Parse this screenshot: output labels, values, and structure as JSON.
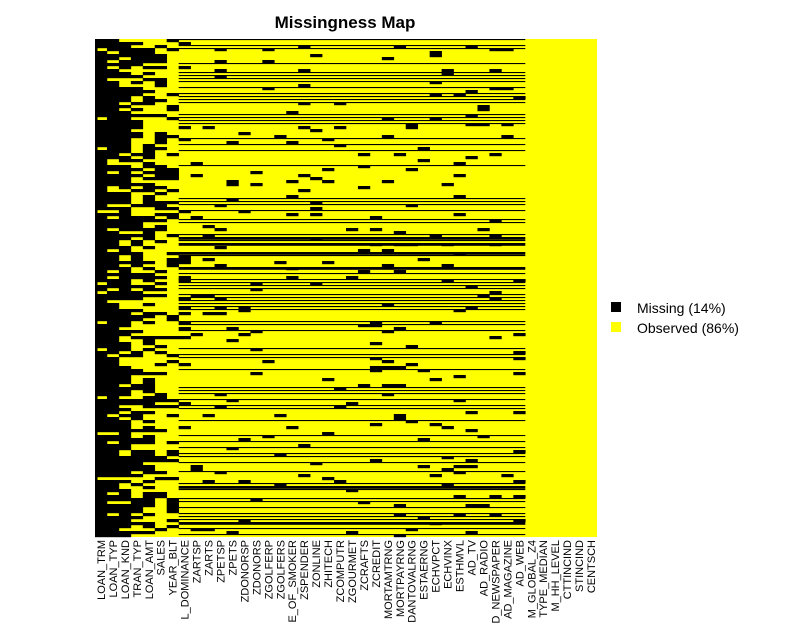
{
  "chart_data": {
    "type": "heatmap",
    "title": "Missingness Map",
    "xlabel": "",
    "ylabel": "",
    "colors": {
      "missing": "#000000",
      "observed": "#ffff00"
    },
    "legend": {
      "placement": "right",
      "entries": [
        {
          "label": "Missing (14%)",
          "color": "#000000"
        },
        {
          "label": "Observed (86%)",
          "color": "#ffff00"
        }
      ]
    },
    "variables": [
      "LOAN_TRM",
      "LOAN_TYP",
      "LOAN_KND",
      "TRAN_TYP",
      "LOAN_AMT",
      "SALES",
      "YEAR_BLT",
      "L_DOMINANCE",
      "ZARTSP",
      "ZARTS",
      "ZPETSP",
      "ZPETS",
      "ZDONORSP",
      "ZDONORS",
      "ZGOLFERP",
      "ZGOLFERS",
      "E_OF_SMOKER",
      "ZSPENDER",
      "ZONLINE",
      "ZHITECH",
      "ZCOMPUTR",
      "ZGOURMET",
      "ZCRAFTS",
      "ZCREDIT",
      "MORTAMTRNG",
      "MORTPAYRNG",
      "DANTOVALRNG",
      "ESTAERNG",
      "ECHVPCT",
      "ECHVINX",
      "ESTHMVL",
      "AD_TV",
      "AD_RADIO",
      "D_NEWSPAPER",
      "AD_MAGAZINE",
      "AD_WEB",
      "M_GLOBAL_Z4",
      "TYPE_MEDIAN",
      "M_HH_LEVEL",
      "CTTINCIND",
      "STINCIND",
      "CENTSCH"
    ],
    "missing_rate": [
      0.9,
      0.85,
      0.75,
      0.55,
      0.5,
      0.35,
      0.25,
      0.06,
      0.05,
      0.05,
      0.05,
      0.05,
      0.05,
      0.05,
      0.05,
      0.05,
      0.05,
      0.05,
      0.05,
      0.05,
      0.05,
      0.05,
      0.05,
      0.05,
      0.05,
      0.05,
      0.05,
      0.05,
      0.05,
      0.05,
      0.05,
      0.05,
      0.05,
      0.05,
      0.05,
      0.05,
      0,
      0,
      0,
      0,
      0,
      0
    ],
    "grid": false
  }
}
